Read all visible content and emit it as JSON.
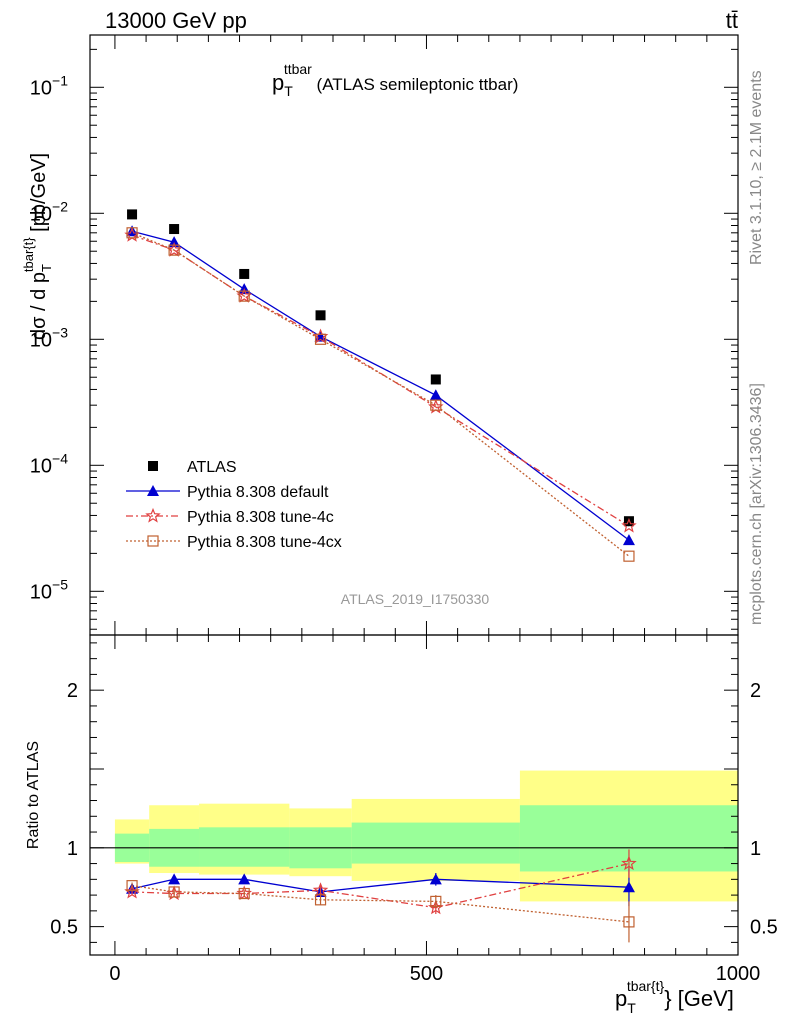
{
  "header": {
    "left": "13000 GeV pp",
    "right": "tt̄"
  },
  "side_labels": {
    "rivet": "Rivet 3.1.10, ≥ 2.1M events",
    "mcplots": "mcplots.cern.ch [arXiv:1306.3436]"
  },
  "chart_data": {
    "type": "line",
    "title_main": "p",
    "title_sub": "T",
    "title_sup": "ttbar",
    "title_rest": " (ATLAS semileptonic ttbar)",
    "watermark": "ATLAS_2019_I1750330",
    "ylabel": "dσ / d p_T^{tbar{t}} [pb/GeV]",
    "xlabel": "p_T^{tbar{t}} [GeV]",
    "xlim": [
      -40,
      1000
    ],
    "ylim": [
      4.5e-06,
      0.26
    ],
    "yscale": "log",
    "ratio_ylabel": "Ratio to ATLAS",
    "ratio_ylim": [
      0.32,
      2.35
    ],
    "x_ticks": [
      "0",
      "500",
      "1000"
    ],
    "y_ticks": [
      "10^-5",
      "10^-4",
      "10^-3",
      "10^-2",
      "10^-1"
    ],
    "ratio_y_ticks": [
      "0.5",
      "1",
      "2"
    ],
    "x": [
      27.5,
      95,
      207.5,
      330,
      515,
      825
    ],
    "bin_edges": [
      0,
      55,
      135,
      280,
      380,
      650,
      1000
    ],
    "legend_position": "lower-left",
    "series": [
      {
        "name": "ATLAS",
        "role": "data",
        "values": [
          0.0098,
          0.0075,
          0.0033,
          0.00155,
          0.00048,
          3.6e-05
        ],
        "color": "#000000",
        "marker": "square"
      },
      {
        "name": "Pythia 8.308 default",
        "values": [
          0.0072,
          0.0059,
          0.0025,
          0.00105,
          0.00036,
          2.55e-05
        ],
        "ratio": [
          0.74,
          0.8,
          0.8,
          0.72,
          0.8,
          0.75
        ],
        "ratio_err": [
          0.02,
          0.02,
          0.02,
          0.03,
          0.04,
          0.12
        ],
        "color": "#0000d0",
        "marker": "triangle",
        "dash": ""
      },
      {
        "name": "Pythia 8.308 tune-4c",
        "values": [
          0.0067,
          0.0051,
          0.0022,
          0.00105,
          0.00029,
          3.3e-05
        ],
        "ratio": [
          0.72,
          0.71,
          0.71,
          0.73,
          0.62,
          0.9
        ],
        "ratio_err": [
          0.02,
          0.02,
          0.02,
          0.03,
          0.04,
          0.09
        ],
        "color": "#e04040",
        "marker": "star",
        "dash": "7,3,2,3"
      },
      {
        "name": "Pythia 8.308 tune-4cx",
        "values": [
          0.007,
          0.0051,
          0.0022,
          0.001,
          0.0003,
          1.9e-05
        ],
        "ratio": [
          0.76,
          0.72,
          0.71,
          0.67,
          0.66,
          0.53
        ],
        "ratio_err": [
          0.02,
          0.02,
          0.02,
          0.03,
          0.04,
          0.13
        ],
        "color": "#c06030",
        "marker": "open-square",
        "dash": "2,2"
      }
    ],
    "ratio_bands": {
      "inner": [
        [
          0.91,
          1.09
        ],
        [
          0.88,
          1.12
        ],
        [
          0.88,
          1.13
        ],
        [
          0.87,
          1.13
        ],
        [
          0.9,
          1.16
        ],
        [
          0.85,
          1.27
        ]
      ],
      "outer": [
        [
          0.9,
          1.18
        ],
        [
          0.84,
          1.27
        ],
        [
          0.83,
          1.28
        ],
        [
          0.82,
          1.25
        ],
        [
          0.79,
          1.31
        ],
        [
          0.66,
          1.49
        ]
      ],
      "inner_color": "#99ff99",
      "outer_color": "#ffff88"
    }
  }
}
